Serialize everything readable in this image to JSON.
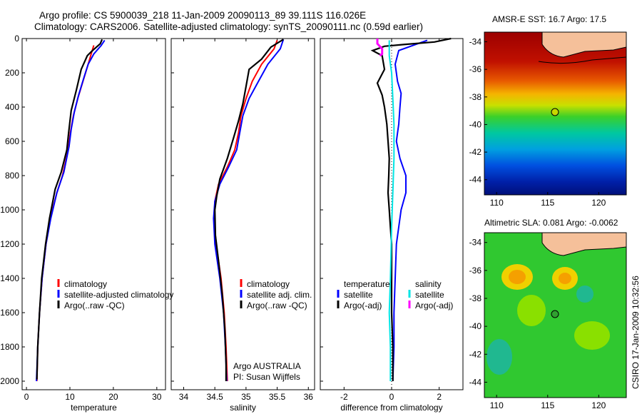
{
  "header": {
    "line1": "Argo profile: CS 5900039_218 11-Jan-2009 20090113_89 39.111S 116.026E",
    "line2": "Climatology: CARS2006. Satellite-adjusted climatology: synTS_20090111.nc (0.59d earlier)"
  },
  "side_label": "CSIRO 17-Jan-2009 10:32:56",
  "credit": {
    "line1": "Argo AUSTRALIA",
    "line2": "PI: Susan Wijffels"
  },
  "colors": {
    "climatology": "#ff0000",
    "satellite": "#0000ff",
    "argo": "#000000",
    "sat_diff_s": "#00e5e5",
    "argo_diff_s": "#ff00ff",
    "land": "#f5c09a"
  },
  "chart_data": [
    {
      "type": "line",
      "xlabel": "temperature",
      "ylim": [
        2050,
        0
      ],
      "xlim": [
        -1,
        32
      ],
      "xticks": [
        0,
        10,
        20,
        30
      ],
      "yticks": [
        0,
        200,
        400,
        600,
        800,
        1000,
        1200,
        1400,
        1600,
        1800,
        2000
      ],
      "legend": [
        "climatology",
        "satellite-adjusted climatology",
        "Argo(..raw -QC)"
      ],
      "series": [
        {
          "name": "climatology",
          "color": "red",
          "points": [
            [
              15.5,
              40
            ],
            [
              15,
              80
            ],
            [
              14.2,
              150
            ],
            [
              13,
              250
            ],
            [
              11.8,
              350
            ],
            [
              10.8,
              450
            ],
            [
              10.1,
              550
            ],
            [
              9.6,
              650
            ],
            [
              8.3,
              800
            ],
            [
              7,
              900
            ],
            [
              5.5,
              1050
            ],
            [
              4.5,
              1200
            ],
            [
              3.6,
              1400
            ],
            [
              3,
              1600
            ],
            [
              2.6,
              1800
            ],
            [
              2.4,
              2000
            ]
          ]
        },
        {
          "name": "satellite-adjusted climatology",
          "color": "blue",
          "points": [
            [
              18,
              10
            ],
            [
              17.2,
              40
            ],
            [
              15.5,
              90
            ],
            [
              14.2,
              150
            ],
            [
              13.2,
              230
            ],
            [
              12,
              330
            ],
            [
              11,
              430
            ],
            [
              10.3,
              530
            ],
            [
              9.8,
              630
            ],
            [
              8.6,
              780
            ],
            [
              7,
              900
            ],
            [
              5.6,
              1050
            ],
            [
              4.5,
              1200
            ],
            [
              3.6,
              1400
            ],
            [
              3,
              1600
            ],
            [
              2.6,
              1800
            ],
            [
              2.3,
              2000
            ]
          ]
        },
        {
          "name": "Argo(..raw -QC)",
          "color": "black",
          "points": [
            [
              17.4,
              5
            ],
            [
              17,
              30
            ],
            [
              15.2,
              70
            ],
            [
              14,
              100
            ],
            [
              12.6,
              180
            ],
            [
              11.5,
              300
            ],
            [
              10.3,
              420
            ],
            [
              9.7,
              550
            ],
            [
              9.3,
              650
            ],
            [
              8,
              780
            ],
            [
              6.6,
              880
            ],
            [
              5.3,
              1050
            ],
            [
              4.4,
              1200
            ],
            [
              3.5,
              1400
            ],
            [
              3,
              1600
            ],
            [
              2.6,
              1800
            ],
            [
              2.4,
              1990
            ]
          ]
        }
      ]
    },
    {
      "type": "line",
      "xlabel": "salinity",
      "ylim": [
        2050,
        0
      ],
      "xlim": [
        33.8,
        36.1
      ],
      "xticks": [
        "34",
        "34.5",
        "35",
        "35.5",
        "36"
      ],
      "legend": [
        "climatology",
        "satellite adj. clim.",
        "Argo(..raw -QC)"
      ],
      "series": [
        {
          "name": "climatology",
          "color": "red",
          "points": [
            [
              35.5,
              10
            ],
            [
              35.45,
              60
            ],
            [
              35.25,
              150
            ],
            [
              35.1,
              250
            ],
            [
              35.0,
              350
            ],
            [
              34.92,
              450
            ],
            [
              34.88,
              550
            ],
            [
              34.82,
              650
            ],
            [
              34.7,
              750
            ],
            [
              34.56,
              850
            ],
            [
              34.5,
              950
            ],
            [
              34.49,
              1050
            ],
            [
              34.52,
              1200
            ],
            [
              34.6,
              1400
            ],
            [
              34.65,
              1600
            ],
            [
              34.68,
              1800
            ],
            [
              34.7,
              2000
            ]
          ]
        },
        {
          "name": "satellite adj. clim.",
          "color": "blue",
          "points": [
            [
              35.6,
              5
            ],
            [
              35.55,
              60
            ],
            [
              35.35,
              150
            ],
            [
              35.2,
              250
            ],
            [
              35.05,
              350
            ],
            [
              34.95,
              450
            ],
            [
              34.9,
              550
            ],
            [
              34.85,
              650
            ],
            [
              34.72,
              750
            ],
            [
              34.58,
              850
            ],
            [
              34.5,
              950
            ],
            [
              34.48,
              1050
            ],
            [
              34.5,
              1200
            ],
            [
              34.58,
              1400
            ],
            [
              34.64,
              1600
            ],
            [
              34.67,
              1800
            ],
            [
              34.69,
              2000
            ]
          ]
        },
        {
          "name": "Argo(..raw -QC)",
          "color": "black",
          "points": [
            [
              35.6,
              5
            ],
            [
              35.4,
              50
            ],
            [
              35.25,
              120
            ],
            [
              35.05,
              180
            ],
            [
              35.0,
              280
            ],
            [
              34.95,
              380
            ],
            [
              34.88,
              480
            ],
            [
              34.8,
              580
            ],
            [
              34.7,
              700
            ],
            [
              34.58,
              820
            ],
            [
              34.53,
              920
            ],
            [
              34.5,
              1000
            ],
            [
              34.51,
              1150
            ],
            [
              34.56,
              1300
            ],
            [
              34.62,
              1500
            ],
            [
              34.66,
              1700
            ],
            [
              34.68,
              1900
            ],
            [
              34.68,
              2000
            ]
          ]
        }
      ]
    },
    {
      "type": "line",
      "xlabel": "difference from climatology",
      "ylim": [
        2050,
        0
      ],
      "xlim": [
        -3,
        3
      ],
      "xticks": [
        -2,
        0,
        2
      ],
      "legend": [
        "temperature",
        "satellite",
        "Argo(-adj)",
        "salinity",
        "satellite",
        "Argo(-adj)"
      ],
      "series": [
        {
          "name": "temperature satellite",
          "color": "blue",
          "points": [
            [
              1.5,
              10
            ],
            [
              0.3,
              70
            ],
            [
              0.15,
              150
            ],
            [
              0.25,
              250
            ],
            [
              0.4,
              320
            ],
            [
              0.35,
              400
            ],
            [
              0.3,
              500
            ],
            [
              0.25,
              550
            ],
            [
              0.2,
              600
            ],
            [
              0.35,
              700
            ],
            [
              0.6,
              800
            ],
            [
              0.6,
              900
            ],
            [
              0.4,
              1000
            ],
            [
              0.3,
              1100
            ],
            [
              0.2,
              1200
            ],
            [
              0.15,
              1400
            ],
            [
              0.1,
              1600
            ],
            [
              0.1,
              1800
            ],
            [
              0.05,
              2000
            ]
          ]
        },
        {
          "name": "temperature Argo(-adj)",
          "color": "black",
          "points": [
            [
              2.5,
              0
            ],
            [
              1.8,
              20
            ],
            [
              0.5,
              35
            ],
            [
              -0.3,
              45
            ],
            [
              -0.8,
              70
            ],
            [
              -0.4,
              100
            ],
            [
              -0.3,
              180
            ],
            [
              -0.6,
              260
            ],
            [
              -0.4,
              330
            ],
            [
              -0.3,
              400
            ],
            [
              -0.2,
              500
            ],
            [
              -0.15,
              600
            ],
            [
              -0.1,
              700
            ],
            [
              -0.12,
              800
            ],
            [
              -0.15,
              900
            ],
            [
              -0.1,
              1000
            ],
            [
              -0.05,
              1100
            ],
            [
              0,
              1200
            ],
            [
              0,
              1400
            ],
            [
              0,
              1600
            ],
            [
              0.05,
              1800
            ],
            [
              0.05,
              2000
            ]
          ]
        },
        {
          "name": "salinity satellite",
          "color": "cyan",
          "points": [
            [
              -0.1,
              10
            ],
            [
              -0.1,
              100
            ],
            [
              0,
              200
            ],
            [
              0.05,
              350
            ],
            [
              0.1,
              500
            ],
            [
              0.1,
              700
            ],
            [
              0.05,
              900
            ],
            [
              0,
              1100
            ],
            [
              -0.05,
              1400
            ],
            [
              -0.1,
              1600
            ],
            [
              -0.05,
              1800
            ],
            [
              -0.05,
              2000
            ]
          ]
        },
        {
          "name": "salinity Argo(-adj)",
          "color": "magenta",
          "points": [
            [
              -0.6,
              0
            ],
            [
              -0.6,
              30
            ],
            [
              -0.4,
              60
            ],
            [
              -0.4,
              90
            ],
            [
              -0.5,
              100
            ]
          ]
        }
      ]
    }
  ],
  "maps": [
    {
      "title": "AMSR-E SST: 16.7 Argo: 17.5",
      "xticks": [
        "110",
        "115",
        "120"
      ],
      "yticks": [
        "-34",
        "-36",
        "-38",
        "-40",
        "-42",
        "-44"
      ],
      "float": {
        "lon": 116.0,
        "lat": -39.1
      },
      "colorbar": false
    },
    {
      "title": "Altimetric SLA: 0.081 Argo: -0.0062",
      "xticks": [
        "110",
        "115",
        "120"
      ],
      "yticks": [
        "-34",
        "-36",
        "-38",
        "-40",
        "-42",
        "-44"
      ],
      "float": {
        "lon": 116.0,
        "lat": -39.1
      },
      "colorbar": false
    }
  ]
}
